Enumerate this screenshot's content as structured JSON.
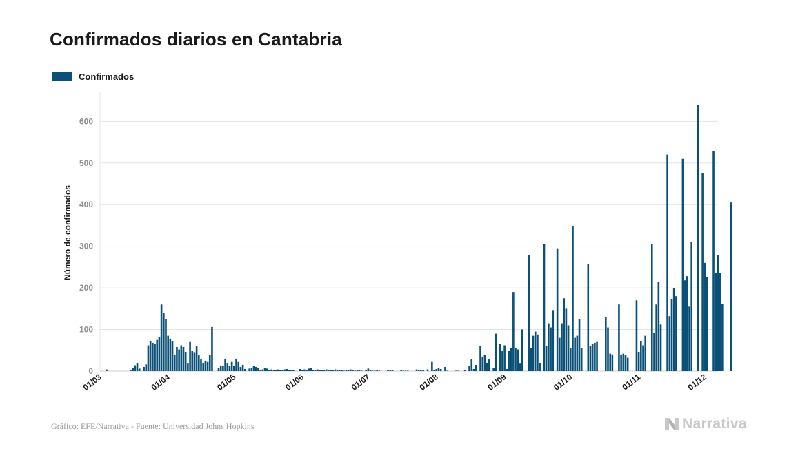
{
  "header": {
    "title": "Confirmados diarios en Cantabria"
  },
  "footer": {
    "source": "Gráfico: EFE/Narrativa - Fuente: Universidad Johns Hopkins",
    "brand": "Narrativa",
    "brand_icon": "narrativa-n-logo-icon"
  },
  "colors": {
    "bar": "#0b5077",
    "grid": "#e4e4e4",
    "tick": "#8f8f8f",
    "brand": "#c8c8c8"
  },
  "chart_data": {
    "type": "bar",
    "title": "Confirmados diarios en Cantabria",
    "xlabel": "",
    "ylabel": "Número de confirmados",
    "ylim": [
      0,
      670
    ],
    "yticks": [
      0,
      100,
      200,
      300,
      400,
      500,
      600
    ],
    "grid": true,
    "legend": "top-left",
    "x_start": "2020-02-21",
    "xticks": [
      "01/03",
      "01/04",
      "01/05",
      "01/06",
      "01/07",
      "01/08",
      "01/09",
      "01/10",
      "01/11",
      "01/12"
    ],
    "series": [
      {
        "name": "Confirmados",
        "values": [
          0,
          0,
          0,
          0,
          0,
          0,
          0,
          0,
          0,
          0,
          0,
          4,
          0,
          0,
          0,
          0,
          0,
          0,
          0,
          0,
          0,
          0,
          3,
          8,
          14,
          20,
          6,
          0,
          10,
          16,
          62,
          72,
          68,
          65,
          75,
          82,
          160,
          140,
          125,
          85,
          78,
          72,
          40,
          58,
          52,
          62,
          58,
          45,
          18,
          70,
          48,
          44,
          60,
          38,
          28,
          20,
          25,
          22,
          38,
          106,
          0,
          0,
          8,
          12,
          12,
          30,
          18,
          12,
          22,
          12,
          30,
          22,
          10,
          15,
          5,
          0,
          6,
          8,
          12,
          10,
          8,
          2,
          4,
          8,
          6,
          3,
          4,
          3,
          3,
          4,
          3,
          2,
          4,
          5,
          3,
          2,
          2,
          0,
          0,
          5,
          3,
          4,
          2,
          6,
          8,
          3,
          2,
          4,
          3,
          2,
          3,
          4,
          3,
          3,
          2,
          4,
          3,
          3,
          2,
          1,
          2,
          3,
          4,
          2,
          1,
          2,
          3,
          1,
          0,
          2,
          6,
          2,
          1,
          1,
          3,
          1,
          0,
          0,
          0,
          2,
          3,
          2,
          0,
          0,
          0,
          2,
          1,
          1,
          1,
          0,
          0,
          0,
          4,
          3,
          2,
          2,
          0,
          4,
          0,
          22,
          2,
          5,
          8,
          5,
          0,
          10,
          1,
          0,
          0,
          0,
          1,
          1,
          0,
          0,
          3,
          0,
          12,
          28,
          5,
          15,
          0,
          60,
          35,
          38,
          20,
          28,
          0,
          8,
          90,
          0,
          65,
          48,
          62,
          5,
          48,
          55,
          190,
          55,
          52,
          18,
          100,
          0,
          0,
          278,
          55,
          85,
          95,
          88,
          20,
          0,
          305,
          60,
          115,
          105,
          145,
          0,
          295,
          80,
          115,
          175,
          150,
          110,
          55,
          348,
          80,
          85,
          125,
          55,
          0,
          0,
          258,
          60,
          65,
          68,
          70,
          0,
          0,
          0,
          130,
          105,
          42,
          40,
          0,
          0,
          160,
          40,
          42,
          38,
          32,
          0,
          0,
          0,
          170,
          45,
          72,
          62,
          85,
          0,
          0,
          305,
          92,
          160,
          215,
          112,
          0,
          0,
          520,
          132,
          172,
          200,
          180,
          0,
          0,
          510,
          218,
          228,
          155,
          310,
          0,
          0,
          640,
          0,
          475,
          260,
          225,
          0,
          0,
          528,
          235,
          278,
          235,
          162,
          0,
          0,
          0,
          405
        ]
      }
    ]
  }
}
